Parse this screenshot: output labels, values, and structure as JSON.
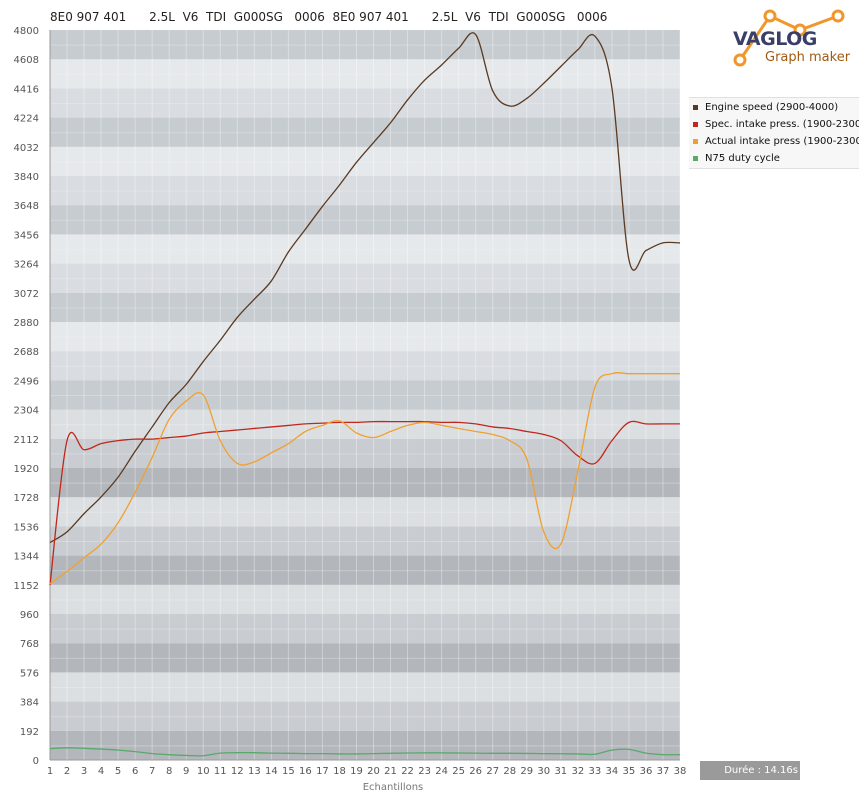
{
  "header": {
    "text": "8E0 907 401      2.5L  V6  TDI  G000SG   0006  8E0 907 401      2.5L  V6  TDI  G000SG   0006"
  },
  "logo": {
    "brand": "VAGLOG",
    "subtitle": "Graph maker"
  },
  "duration": "Durée : 14.16s",
  "colors": {
    "engine_speed": "#5b3a22",
    "spec_intake": "#c0281c",
    "actual_intake": "#f0a030",
    "n75": "#5aa86a",
    "logo_orange": "#f0962a"
  },
  "chart_data": {
    "type": "line",
    "title": "",
    "xlabel": "Echantillons",
    "ylabel": "",
    "x": [
      1,
      2,
      3,
      4,
      5,
      6,
      7,
      8,
      9,
      10,
      11,
      12,
      13,
      14,
      15,
      16,
      17,
      18,
      19,
      20,
      21,
      22,
      23,
      24,
      25,
      26,
      27,
      28,
      29,
      30,
      31,
      32,
      33,
      34,
      35,
      36,
      37,
      38
    ],
    "xlim": [
      1,
      38
    ],
    "ylim": [
      0,
      4800
    ],
    "yticks": [
      0,
      192,
      384,
      576,
      768,
      960,
      1152,
      1344,
      1536,
      1728,
      1920,
      2112,
      2304,
      2496,
      2688,
      2880,
      3072,
      3264,
      3456,
      3648,
      3840,
      4032,
      4224,
      4416,
      4608,
      4800
    ],
    "grid": true,
    "legend_position": "top-right",
    "series": [
      {
        "name": "Engine speed (2900-4000)",
        "color": "#5b3a22",
        "values": [
          1430,
          1500,
          1620,
          1730,
          1860,
          2030,
          2190,
          2350,
          2470,
          2620,
          2760,
          2910,
          3030,
          3150,
          3340,
          3490,
          3640,
          3780,
          3930,
          4060,
          4190,
          4340,
          4470,
          4570,
          4680,
          4770,
          4400,
          4300,
          4350,
          4450,
          4560,
          4670,
          4760,
          4420,
          3290,
          3350,
          3400,
          3400
        ]
      },
      {
        "name": "Spec. intake press. (1900-2300",
        "color": "#c0281c",
        "values": [
          1150,
          2100,
          2040,
          2080,
          2100,
          2110,
          2110,
          2120,
          2130,
          2150,
          2160,
          2170,
          2180,
          2190,
          2200,
          2210,
          2215,
          2220,
          2220,
          2225,
          2225,
          2225,
          2225,
          2220,
          2220,
          2210,
          2190,
          2180,
          2160,
          2140,
          2100,
          2000,
          1950,
          2100,
          2220,
          2210,
          2210,
          2210
        ]
      },
      {
        "name": "Actual intake press (1900-2300",
        "color": "#f0a030",
        "values": [
          1160,
          1240,
          1330,
          1420,
          1560,
          1760,
          1990,
          2240,
          2360,
          2400,
          2100,
          1950,
          1960,
          2020,
          2080,
          2160,
          2200,
          2230,
          2150,
          2120,
          2160,
          2200,
          2220,
          2200,
          2180,
          2160,
          2140,
          2100,
          1980,
          1500,
          1420,
          1900,
          2450,
          2540,
          2540,
          2540,
          2540,
          2540
        ]
      },
      {
        "name": "N75 duty cycle",
        "color": "#5aa86a",
        "values": [
          75,
          80,
          77,
          72,
          65,
          55,
          42,
          35,
          30,
          28,
          45,
          48,
          48,
          45,
          44,
          42,
          42,
          40,
          40,
          42,
          44,
          46,
          47,
          47,
          46,
          45,
          44,
          44,
          43,
          42,
          41,
          40,
          38,
          65,
          70,
          45,
          35,
          35
        ]
      }
    ]
  }
}
